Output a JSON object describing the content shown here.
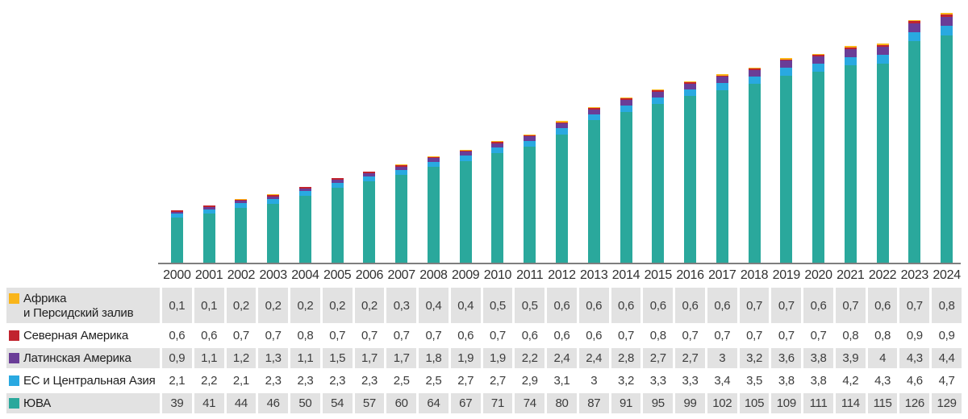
{
  "chart_data": {
    "type": "bar",
    "stacked": true,
    "title": "",
    "xlabel": "",
    "ylabel": "",
    "grid": false,
    "legend_position": "table-left",
    "ylim": [
      16.9,
      140
    ],
    "categories": [
      "2000",
      "2001",
      "2002",
      "2003",
      "2004",
      "2005",
      "2006",
      "2007",
      "2008",
      "2009",
      "2010",
      "2011",
      "2012",
      "2013",
      "2014",
      "2015",
      "2016",
      "2017",
      "2018",
      "2019",
      "2020",
      "2021",
      "2022",
      "2023",
      "2024"
    ],
    "series": [
      {
        "name": "ЮВА",
        "color": "#2AA89C",
        "values": [
          39,
          41,
          44,
          46,
          50,
          54,
          57,
          60,
          64,
          67,
          71,
          74,
          80,
          87,
          91,
          95,
          99,
          102,
          105,
          109,
          111,
          114,
          115,
          126,
          129
        ]
      },
      {
        "name": "ЕС и Центральная Азия",
        "color": "#29A9E1",
        "values": [
          2.1,
          2.2,
          2.1,
          2.3,
          2.3,
          2.3,
          2.3,
          2.5,
          2.5,
          2.7,
          2.7,
          2.9,
          3.1,
          3,
          3.2,
          3.3,
          3.3,
          3.4,
          3.5,
          3.8,
          3.8,
          4.2,
          4.3,
          4.6,
          4.7
        ]
      },
      {
        "name": "Латинская Америка",
        "color": "#6A3D97",
        "values": [
          0.9,
          1.1,
          1.2,
          1.3,
          1.1,
          1.5,
          1.7,
          1.7,
          1.8,
          1.9,
          1.9,
          2.2,
          2.4,
          2.4,
          2.8,
          2.7,
          2.7,
          3,
          3.2,
          3.6,
          3.8,
          3.9,
          4,
          4.3,
          4.4
        ]
      },
      {
        "name": "Северная Америка",
        "color": "#C1232E",
        "values": [
          0.6,
          0.6,
          0.7,
          0.7,
          0.8,
          0.7,
          0.7,
          0.7,
          0.7,
          0.6,
          0.7,
          0.6,
          0.6,
          0.6,
          0.7,
          0.8,
          0.7,
          0.7,
          0.7,
          0.7,
          0.7,
          0.8,
          0.8,
          0.9,
          0.9
        ]
      },
      {
        "name": "Африка и Персидский залив",
        "color": "#F9B51A",
        "values": [
          0.1,
          0.1,
          0.2,
          0.2,
          0.2,
          0.2,
          0.2,
          0.3,
          0.4,
          0.4,
          0.5,
          0.5,
          0.6,
          0.6,
          0.6,
          0.6,
          0.6,
          0.6,
          0.7,
          0.7,
          0.6,
          0.7,
          0.6,
          0.7,
          0.8
        ]
      }
    ]
  },
  "table": {
    "legend_rows": [
      {
        "series": 4,
        "lines": [
          "Африка",
          "и Персидский залив"
        ]
      },
      {
        "series": 3,
        "lines": [
          "Северная Америка"
        ]
      },
      {
        "series": 2,
        "lines": [
          "Латинская Америка"
        ]
      },
      {
        "series": 1,
        "lines": [
          "ЕС и Центральная Азия"
        ]
      },
      {
        "series": 0,
        "lines": [
          "ЮВА"
        ]
      }
    ]
  }
}
